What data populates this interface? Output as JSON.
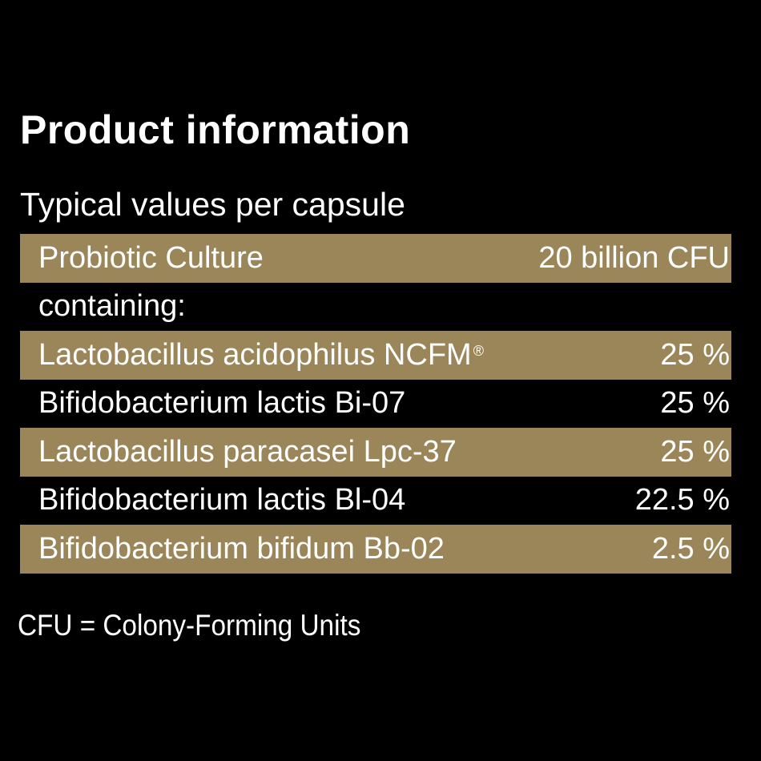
{
  "title": "Product information",
  "subtitle": "Typical values per capsule",
  "band_color": "#9a8659",
  "rows": [
    {
      "name": "Probiotic Culture",
      "value": "20 billion CFU",
      "banded": true
    },
    {
      "name": "containing:",
      "value": "",
      "banded": false
    },
    {
      "name": "Lactobacillus acidophilus NCFM",
      "mark": "®",
      "value": "25 %",
      "banded": true
    },
    {
      "name": "Bifidobacterium lactis Bi-07",
      "value": "25 %",
      "banded": false
    },
    {
      "name": "Lactobacillus paracasei Lpc-37",
      "value": "25 %",
      "banded": true
    },
    {
      "name": "Bifidobacterium lactis Bl-04",
      "value": "22.5 %",
      "banded": false
    },
    {
      "name": "Bifidobacterium bifidum Bb-02",
      "value": "2.5 %",
      "banded": true
    }
  ],
  "footnote": "CFU = Colony-Forming Units"
}
